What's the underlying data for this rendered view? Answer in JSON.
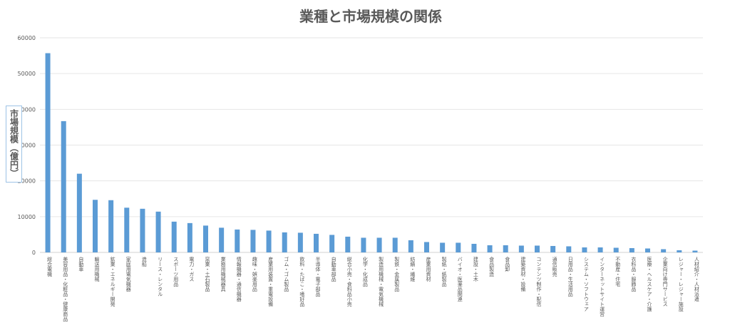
{
  "chart_data": {
    "type": "bar",
    "title": "業種と市場規模の関係",
    "xlabel": "",
    "ylabel": "市場規模（億円）",
    "ylim": [
      0,
      60000
    ],
    "yticks": [
      0,
      10000,
      20000,
      30000,
      40000,
      50000,
      60000
    ],
    "grid": true,
    "legend": "none",
    "bar_color": "#5b9bd5",
    "categories": [
      "総合電機",
      "美容用品・化粧品・健康商品",
      "自動車",
      "輸送用機械",
      "鉱業・エネルギー開発",
      "家庭用電気機器",
      "造船",
      "リース・レンタル",
      "スポーツ用品",
      "電力・ガス",
      "窯業・土石製品",
      "業務用機械器具",
      "情報機器・通信機器",
      "趣味・娯楽用品",
      "産業用装置・重電設備",
      "ゴム・ゴム製品",
      "飲料・たばこ・嗜好品",
      "半導体・電子部品",
      "自動車部品",
      "総合小売・食料品小売",
      "化学・化成品",
      "製造用機械・電気機械",
      "製鉄・金属製品",
      "紡績・繊維",
      "産業用資材",
      "製紙・紙製品",
      "バイオ・医薬品関連",
      "建設・土木",
      "食品製造",
      "食品卸",
      "建築資材・設備",
      "コンテンツ制作・配信",
      "通信販売",
      "日用品・生活用品",
      "システム・ソフトウェア",
      "インターネットサイト運営",
      "不動産・住宅",
      "衣料品・服飾品",
      "医療・ヘルスケア・介護",
      "企業向け専門サービス",
      "レジャー・レジャー施設",
      "人材紹介・人材派遣"
    ],
    "values": [
      55700,
      36700,
      22000,
      14700,
      14600,
      12500,
      12200,
      11400,
      8600,
      8200,
      7500,
      6900,
      6400,
      6300,
      6100,
      5600,
      5500,
      5200,
      4900,
      4400,
      4100,
      4100,
      4100,
      3400,
      2900,
      2700,
      2700,
      2400,
      2000,
      2000,
      1900,
      1900,
      1800,
      1700,
      1400,
      1400,
      1300,
      1200,
      1100,
      900,
      600,
      500
    ]
  }
}
